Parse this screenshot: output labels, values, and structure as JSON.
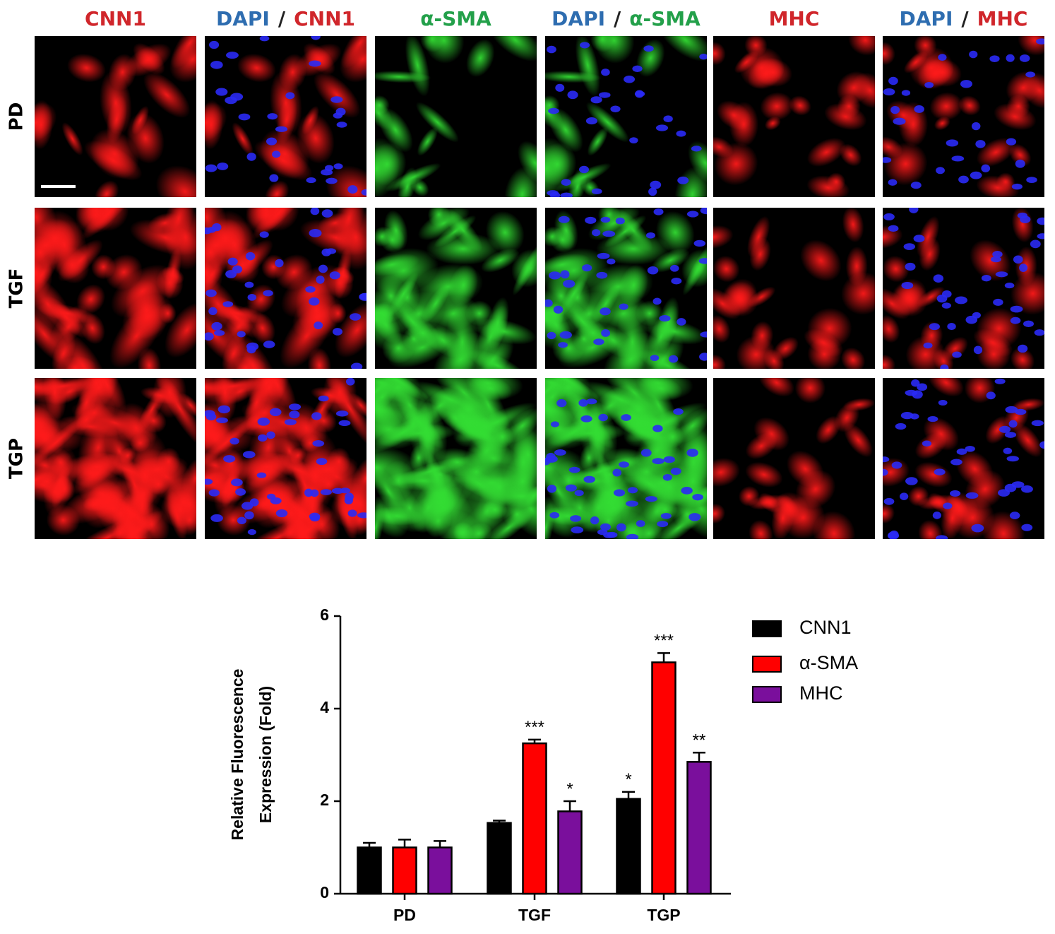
{
  "panels": {
    "columns": [
      {
        "parts": [
          {
            "text": "CNN1",
            "color": "#d0262b"
          }
        ]
      },
      {
        "parts": [
          {
            "text": "DAPI",
            "color": "#2e6db0"
          },
          {
            "text": "/",
            "color": "#222222"
          },
          {
            "text": "CNN1",
            "color": "#d0262b"
          }
        ]
      },
      {
        "parts": [
          {
            "text": "α-SMA",
            "color": "#23a04a"
          }
        ]
      },
      {
        "parts": [
          {
            "text": "DAPI",
            "color": "#2e6db0"
          },
          {
            "text": "/",
            "color": "#222222"
          },
          {
            "text": "α-SMA",
            "color": "#23a04a"
          }
        ]
      },
      {
        "parts": [
          {
            "text": "MHC",
            "color": "#d0262b"
          }
        ]
      },
      {
        "parts": [
          {
            "text": "DAPI",
            "color": "#2e6db0"
          },
          {
            "text": "/",
            "color": "#222222"
          },
          {
            "text": "MHC",
            "color": "#d0262b"
          }
        ]
      }
    ],
    "rows": [
      "PD",
      "TGF",
      "TGP"
    ]
  },
  "chart_data": {
    "type": "bar",
    "y_label": [
      "Relative Fluorescence",
      "Expression (Fold)"
    ],
    "categories": [
      "PD",
      "TGF",
      "TGP"
    ],
    "series": [
      {
        "name": "CNN1",
        "color": "#000000",
        "values": [
          1,
          1.53,
          2.05
        ],
        "errors": [
          0.1,
          0.05,
          0.15
        ],
        "significance": [
          null,
          null,
          "*"
        ]
      },
      {
        "name": "α-SMA",
        "color": "#ff0000",
        "values": [
          1,
          3.25,
          5.0
        ],
        "errors": [
          0.17,
          0.08,
          0.2
        ],
        "significance": [
          null,
          "***",
          "***"
        ]
      },
      {
        "name": "MHC",
        "color": "#7a0f9c",
        "values": [
          1,
          1.78,
          2.85
        ],
        "errors": [
          0.14,
          0.22,
          0.2
        ],
        "significance": [
          null,
          "*",
          "**"
        ]
      }
    ],
    "ylim": [
      0,
      6
    ],
    "yticks": [
      0,
      2,
      4,
      6
    ],
    "grid": false,
    "legend": "right"
  }
}
